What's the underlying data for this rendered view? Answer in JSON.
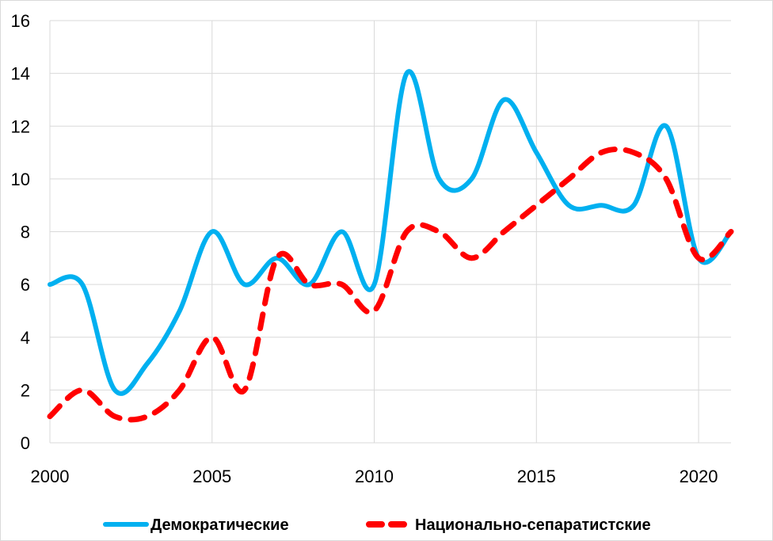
{
  "chart_data": {
    "type": "line",
    "x": [
      2000,
      2001,
      2002,
      2003,
      2004,
      2005,
      2006,
      2007,
      2008,
      2009,
      2010,
      2011,
      2012,
      2013,
      2014,
      2015,
      2016,
      2017,
      2018,
      2019,
      2020,
      2021
    ],
    "series": [
      {
        "name": "Демократические",
        "values": [
          6,
          6,
          2,
          3,
          5,
          8,
          6,
          7,
          6,
          8,
          6,
          14,
          10,
          10,
          13,
          11,
          9,
          9,
          9,
          12,
          7,
          8
        ],
        "color": "#00b0f0",
        "style": "solid"
      },
      {
        "name": "Национально-сепаратистские",
        "values": [
          1,
          2,
          1,
          1,
          2,
          4,
          2,
          7,
          6,
          6,
          5,
          8,
          8,
          7,
          8,
          9,
          10,
          11,
          11,
          10,
          7,
          8
        ],
        "color": "#ff0000",
        "style": "dashed"
      }
    ],
    "xlim": [
      2000,
      2021
    ],
    "ylim": [
      0,
      16
    ],
    "xticks": [
      "2000",
      "2005",
      "2010",
      "2015",
      "2020"
    ],
    "yticks": [
      "0",
      "2",
      "4",
      "6",
      "8",
      "10",
      "12",
      "14",
      "16"
    ],
    "grid": true,
    "legend": "bottom"
  }
}
